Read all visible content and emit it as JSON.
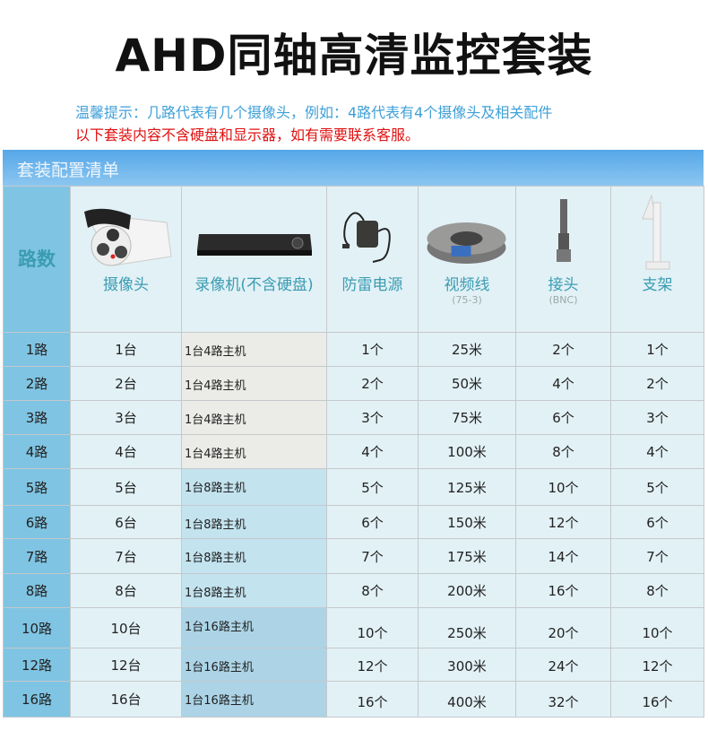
{
  "title": "AHD同轴高清监控套装",
  "tips": [
    "温馨提示：几路代表有几个摄像头，例如：4路代表有4个摄像头及相关配件",
    "以下套装内容不含硬盘和显示器，如有需要联系客服。"
  ],
  "section_title": "套装配置清单",
  "headers": [
    {
      "label": "路数"
    },
    {
      "label": "摄像头",
      "icon": "bullet-camera-icon"
    },
    {
      "label": "录像机(不含硬盘)",
      "icon": "dvr-recorder-icon"
    },
    {
      "label": "防雷电源",
      "icon": "power-adapter-icon"
    },
    {
      "label": "视频线",
      "sub": "(75-3)",
      "icon": "cable-reel-icon"
    },
    {
      "label": "接头",
      "sub": "(BNC)",
      "icon": "bnc-connector-icon"
    },
    {
      "label": "支架",
      "icon": "wall-bracket-icon"
    }
  ],
  "rows": [
    [
      "1路",
      "1台",
      "1台4路主机",
      "1个",
      "25米",
      "2个",
      "1个"
    ],
    [
      "2路",
      "2台",
      "1台4路主机",
      "2个",
      "50米",
      "4个",
      "2个"
    ],
    [
      "3路",
      "3台",
      "1台4路主机",
      "3个",
      "75米",
      "6个",
      "3个"
    ],
    [
      "4路",
      "4台",
      "1台4路主机",
      "4个",
      "100米",
      "8个",
      "4个"
    ],
    [
      "5路",
      "5台",
      "1台8路主机",
      "5个",
      "125米",
      "10个",
      "5个"
    ],
    [
      "6路",
      "6台",
      "1台8路主机",
      "6个",
      "150米",
      "12个",
      "6个"
    ],
    [
      "7路",
      "7台",
      "1台8路主机",
      "7个",
      "175米",
      "14个",
      "7个"
    ],
    [
      "8路",
      "8台",
      "1台8路主机",
      "8个",
      "200米",
      "16个",
      "8个"
    ],
    [
      "10路",
      "10台",
      "1台16路主机",
      "10个",
      "250米",
      "20个",
      "10个"
    ],
    [
      "12路",
      "12台",
      "1台16路主机",
      "12个",
      "300米",
      "24个",
      "12个"
    ],
    [
      "16路",
      "16台",
      "1台16路主机",
      "16个",
      "400米",
      "32个",
      "16个"
    ]
  ]
}
